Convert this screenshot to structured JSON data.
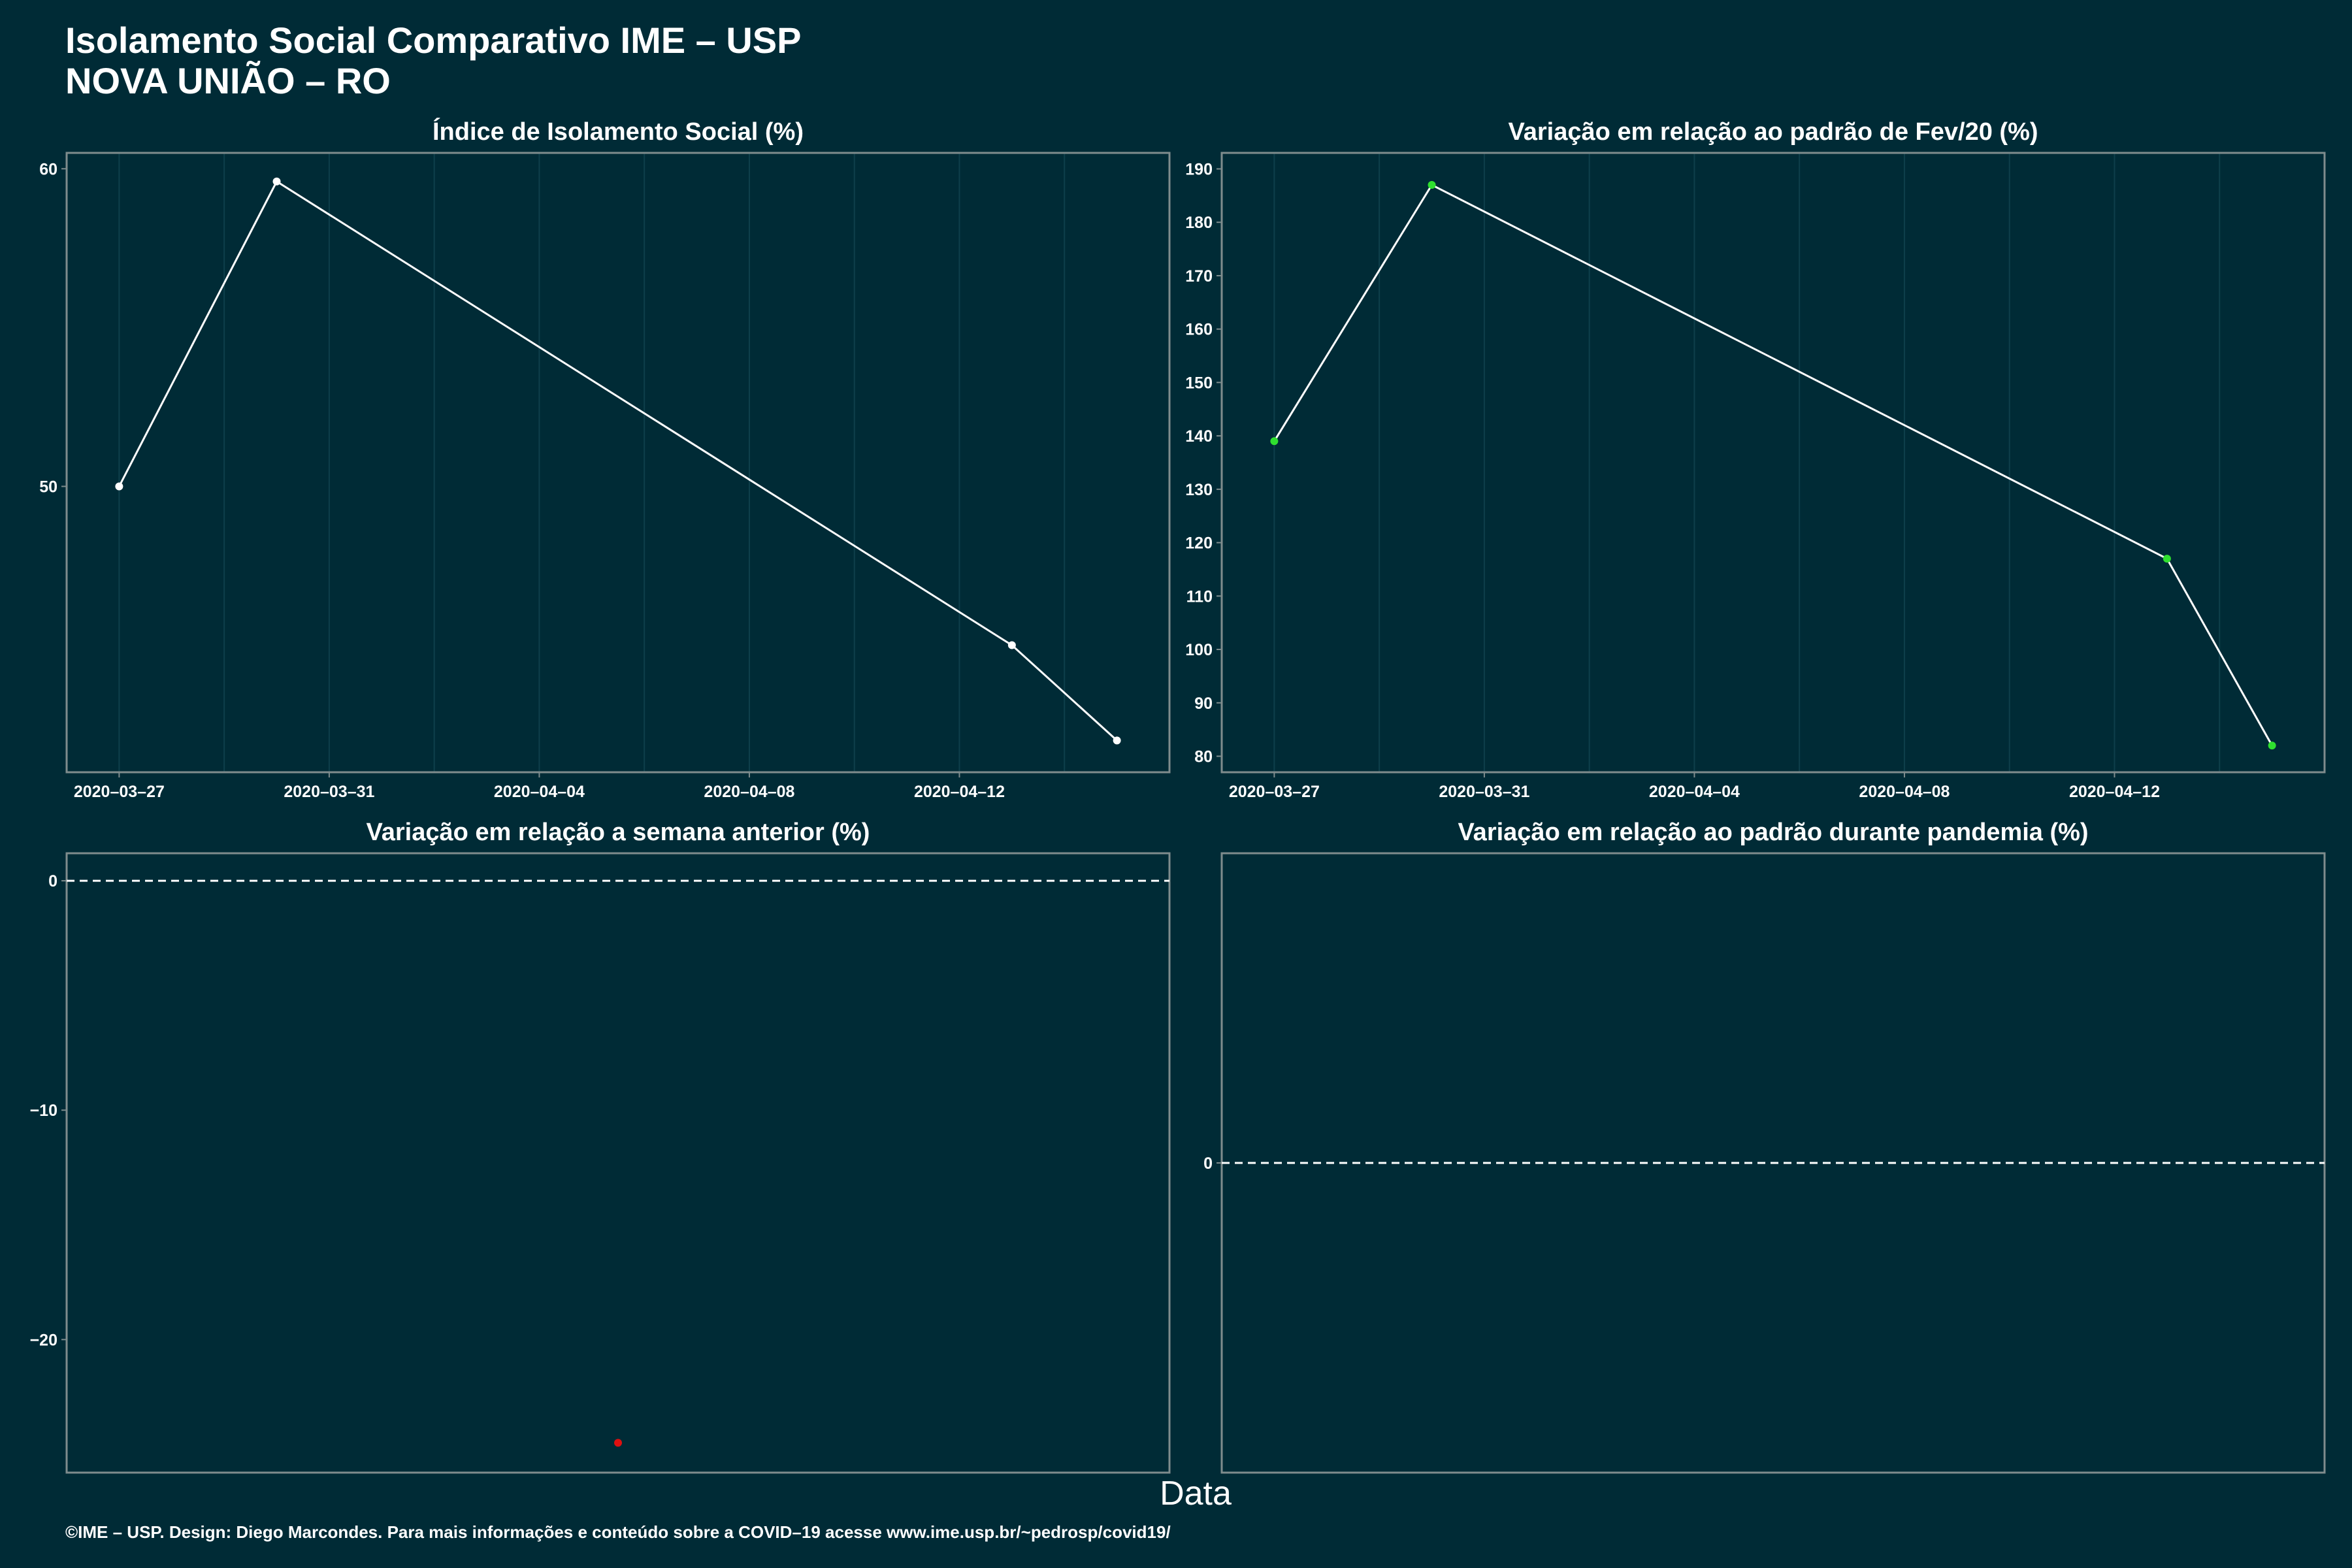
{
  "header": {
    "title": "Isolamento Social Comparativo IME – USP",
    "subtitle": "NOVA UNIÃO – RO"
  },
  "x_axis_label": "Data",
  "footer": "©IME – USP. Design: Diego Marcondes. Para mais informações e conteúdo sobre a COVID–19 acesse www.ime.usp.br/~pedrosp/covid19/",
  "colors": {
    "background": "#002b36",
    "line": "#ffffff",
    "point_neutral": "#ffffff",
    "point_positive": "#2fe02f",
    "point_negative": "#e01010",
    "frame": "#7f8c8d"
  },
  "chart_data": [
    {
      "type": "line",
      "title": "Índice de Isolamento Social (%)",
      "x": [
        "2020-03-27",
        "2020-03-30",
        "2020-04-13",
        "2020-04-15"
      ],
      "series": [
        {
          "values": [
            50.0,
            59.6,
            45.0,
            42.0
          ]
        }
      ],
      "xlim": [
        "2020-03-26",
        "2020-04-16"
      ],
      "ylim": [
        41.0,
        60.5
      ],
      "x_ticks": [
        "2020–03–27",
        "2020–03–31",
        "2020–04–04",
        "2020–04–08",
        "2020–04–12"
      ],
      "y_ticks": [
        "50",
        "60"
      ],
      "point_color": "#ffffff",
      "grid": "vertical",
      "legend": "none"
    },
    {
      "type": "line",
      "title": "Variação em relação ao padrão de Fev/20 (%)",
      "x": [
        "2020-03-27",
        "2020-03-30",
        "2020-04-13",
        "2020-04-15"
      ],
      "series": [
        {
          "values": [
            139,
            187,
            117,
            82
          ]
        }
      ],
      "xlim": [
        "2020-03-26",
        "2020-04-16"
      ],
      "ylim": [
        77,
        193
      ],
      "x_ticks": [
        "2020–03–27",
        "2020–03–31",
        "2020–04–04",
        "2020–04–08",
        "2020–04–12"
      ],
      "y_ticks": [
        "80",
        "90",
        "100",
        "110",
        "120",
        "130",
        "140",
        "150",
        "160",
        "170",
        "180",
        "190"
      ],
      "point_color": "#2fe02f",
      "grid": "vertical",
      "legend": "none"
    },
    {
      "type": "scatter",
      "title": "Variação em relação a semana anterior (%)",
      "points": [
        {
          "x": "2020-04-13",
          "y": -24.5
        }
      ],
      "xlim": [
        "2020-04-12",
        "2020-04-14"
      ],
      "ylim": [
        -25.8,
        1.2
      ],
      "y_ticks": [
        "−20",
        "−10",
        "0"
      ],
      "reference_line": 0,
      "point_color": "#e01010",
      "legend": "none"
    },
    {
      "type": "scatter",
      "title": "Variação em relação ao padrão durante pandemia (%)",
      "points": [],
      "ylim": [
        -1,
        1
      ],
      "y_ticks": [
        "0"
      ],
      "reference_line": 0,
      "legend": "none"
    }
  ]
}
